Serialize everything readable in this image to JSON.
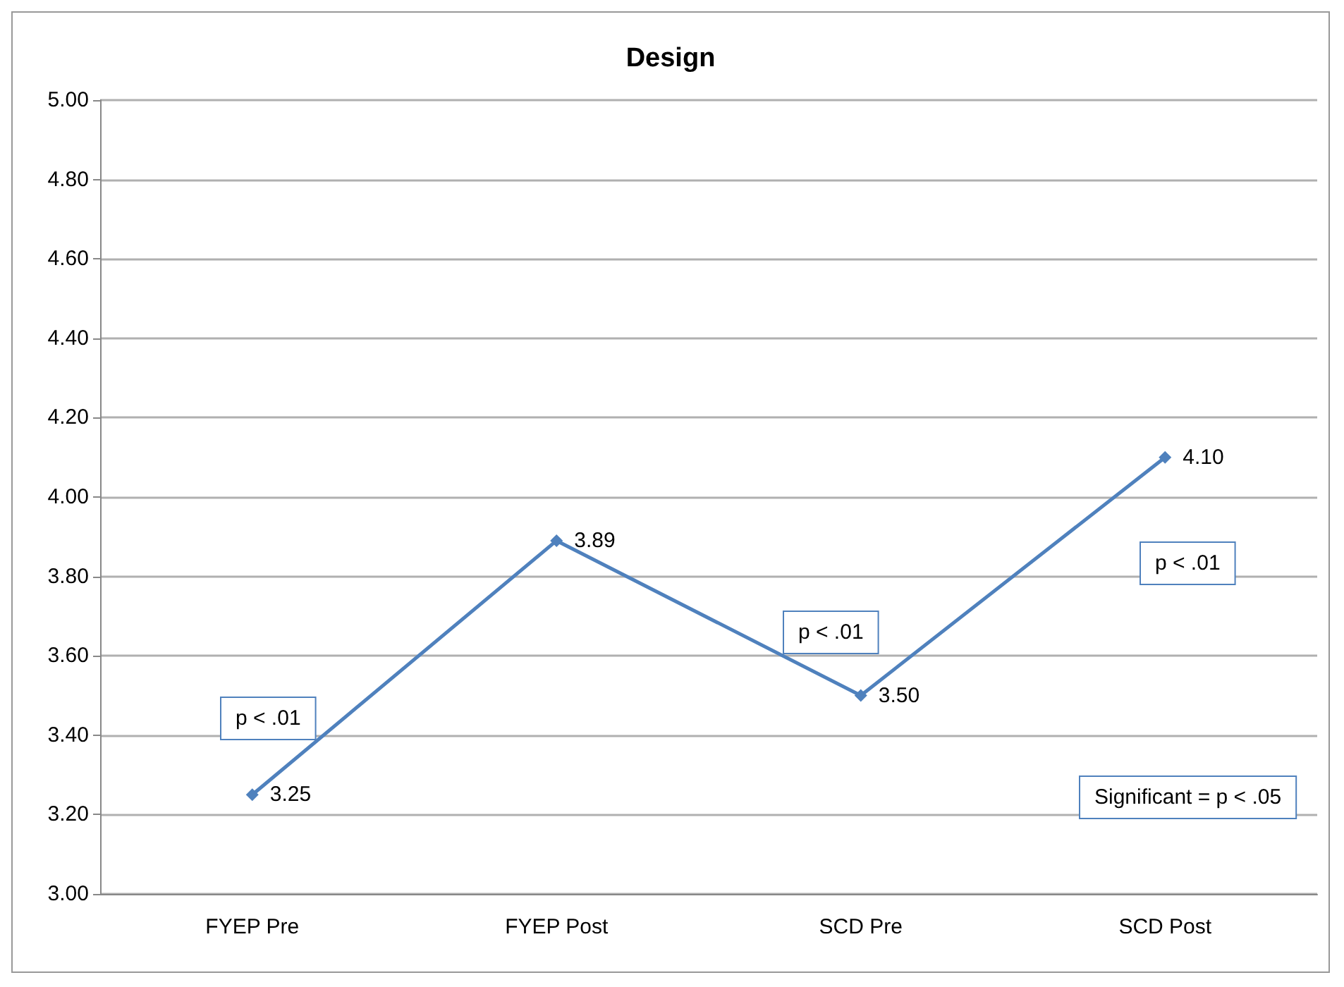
{
  "chart_data": {
    "type": "line",
    "title": "Design",
    "categories": [
      "FYEP Pre",
      "FYEP Post",
      "SCD Pre",
      "SCD Post"
    ],
    "series": [
      {
        "color": "#4f81bd",
        "values": [
          3.25,
          3.89,
          3.5,
          4.1
        ],
        "value_labels": [
          "3.25",
          "3.89",
          "3.50",
          "4.10"
        ]
      }
    ],
    "ylim": [
      3,
      5
    ],
    "yticks": [
      {
        "value": 3,
        "label": "3.00"
      },
      {
        "value": 3.2,
        "label": "3.20"
      },
      {
        "value": 3.4,
        "label": "3.40"
      },
      {
        "value": 3.6,
        "label": "3.60"
      },
      {
        "value": 3.8,
        "label": "3.80"
      },
      {
        "value": 4,
        "label": "4.00"
      },
      {
        "value": 4.2,
        "label": "4.20"
      },
      {
        "value": 4.4,
        "label": "4.40"
      },
      {
        "value": 4.6,
        "label": "4.60"
      },
      {
        "value": 4.8,
        "label": "4.80"
      },
      {
        "value": 5,
        "label": "5.00"
      }
    ],
    "grid": "y",
    "marker": "diamond",
    "line_style": "solid",
    "annotations": [
      "p < .01",
      "p < .01",
      "p < .01",
      "Significant = p < .05"
    ]
  }
}
